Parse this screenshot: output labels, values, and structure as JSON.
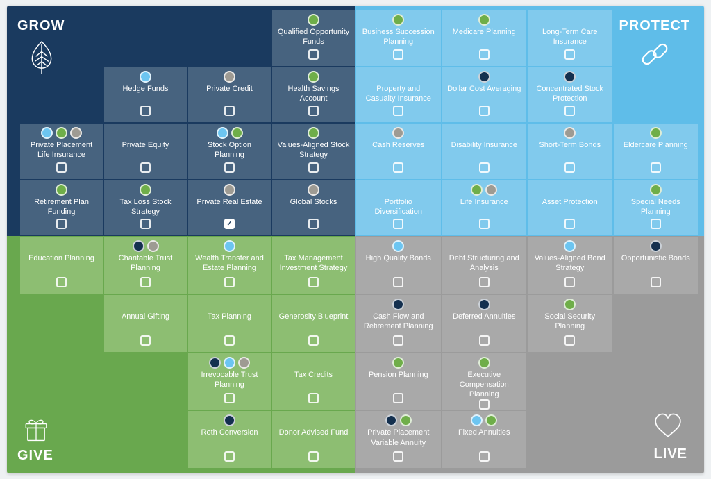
{
  "quadrants": [
    {
      "id": "grow",
      "label": "GROW",
      "icon": "leaf-icon",
      "bg": "#1a3a5f",
      "cell_bg": "#47637f",
      "position": "top-left"
    },
    {
      "id": "protect",
      "label": "PROTECT",
      "icon": "chain-link-icon",
      "bg": "#5fbde9",
      "cell_bg": "#81caed",
      "position": "top-right"
    },
    {
      "id": "give",
      "label": "GIVE",
      "icon": "gift-icon",
      "bg": "#69a84e",
      "cell_bg": "#8dbe72",
      "position": "bottom-left"
    },
    {
      "id": "live",
      "label": "LIVE",
      "icon": "heart-icon",
      "bg": "#9b9b9b",
      "cell_bg": "#a9a9a9",
      "position": "bottom-right"
    }
  ],
  "dot_colors": {
    "blue": "#6cc5f1",
    "green": "#6fae49",
    "gray": "#9e9b93",
    "navy": "#14304f"
  },
  "cells": [
    {
      "row": 1,
      "col": 4,
      "label": "Qualified Opportunity Funds",
      "dots": [
        "green"
      ],
      "checked": false
    },
    {
      "row": 1,
      "col": 5,
      "label": "Business Succession Planning",
      "dots": [
        "green"
      ],
      "checked": false
    },
    {
      "row": 1,
      "col": 6,
      "label": "Medicare Planning",
      "dots": [
        "green"
      ],
      "checked": false
    },
    {
      "row": 1,
      "col": 7,
      "label": "Long-Term Care Insurance",
      "dots": [],
      "checked": false
    },
    {
      "row": 2,
      "col": 2,
      "label": "Hedge Funds",
      "dots": [
        "blue"
      ],
      "checked": false
    },
    {
      "row": 2,
      "col": 3,
      "label": "Private Credit",
      "dots": [
        "gray"
      ],
      "checked": false
    },
    {
      "row": 2,
      "col": 4,
      "label": "Health Savings Account",
      "dots": [
        "green"
      ],
      "checked": false
    },
    {
      "row": 2,
      "col": 5,
      "label": "Property and Casualty Insurance",
      "dots": [],
      "checked": false
    },
    {
      "row": 2,
      "col": 6,
      "label": "Dollar Cost Averaging",
      "dots": [
        "navy"
      ],
      "checked": false
    },
    {
      "row": 2,
      "col": 7,
      "label": "Concentrated Stock Protection",
      "dots": [
        "navy"
      ],
      "checked": false
    },
    {
      "row": 3,
      "col": 1,
      "label": "Private Placement Life Insurance",
      "dots": [
        "blue",
        "green",
        "gray"
      ],
      "checked": false
    },
    {
      "row": 3,
      "col": 2,
      "label": "Private Equity",
      "dots": [],
      "checked": false
    },
    {
      "row": 3,
      "col": 3,
      "label": "Stock Option Planning",
      "dots": [
        "blue",
        "green"
      ],
      "checked": false
    },
    {
      "row": 3,
      "col": 4,
      "label": "Values-Aligned Stock Strategy",
      "dots": [
        "green"
      ],
      "checked": false
    },
    {
      "row": 3,
      "col": 5,
      "label": "Cash Reserves",
      "dots": [
        "gray"
      ],
      "checked": false
    },
    {
      "row": 3,
      "col": 6,
      "label": "Disability Insurance",
      "dots": [],
      "checked": false
    },
    {
      "row": 3,
      "col": 7,
      "label": "Short-Term Bonds",
      "dots": [
        "gray"
      ],
      "checked": false
    },
    {
      "row": 3,
      "col": 8,
      "label": "Eldercare Planning",
      "dots": [
        "green"
      ],
      "checked": false
    },
    {
      "row": 4,
      "col": 1,
      "label": "Retirement Plan Funding",
      "dots": [
        "green"
      ],
      "checked": false
    },
    {
      "row": 4,
      "col": 2,
      "label": "Tax Loss Stock Strategy",
      "dots": [
        "green"
      ],
      "checked": false
    },
    {
      "row": 4,
      "col": 3,
      "label": "Private Real Estate",
      "dots": [
        "gray"
      ],
      "checked": true
    },
    {
      "row": 4,
      "col": 4,
      "label": "Global Stocks",
      "dots": [
        "gray"
      ],
      "checked": false
    },
    {
      "row": 4,
      "col": 5,
      "label": "Portfolio Diversification",
      "dots": [],
      "checked": false
    },
    {
      "row": 4,
      "col": 6,
      "label": "Life Insurance",
      "dots": [
        "green",
        "gray"
      ],
      "checked": false
    },
    {
      "row": 4,
      "col": 7,
      "label": "Asset Protection",
      "dots": [],
      "checked": false
    },
    {
      "row": 4,
      "col": 8,
      "label": "Special Needs Planning",
      "dots": [
        "green"
      ],
      "checked": false
    },
    {
      "row": 5,
      "col": 1,
      "label": "Education Planning",
      "dots": [],
      "checked": false
    },
    {
      "row": 5,
      "col": 2,
      "label": "Charitable Trust Planning",
      "dots": [
        "navy",
        "gray"
      ],
      "checked": false
    },
    {
      "row": 5,
      "col": 3,
      "label": "Wealth Transfer and Estate Planning",
      "dots": [
        "blue"
      ],
      "checked": false
    },
    {
      "row": 5,
      "col": 4,
      "label": "Tax Management Investment Strategy",
      "dots": [],
      "checked": false
    },
    {
      "row": 5,
      "col": 5,
      "label": "High Quality Bonds",
      "dots": [
        "blue"
      ],
      "checked": false
    },
    {
      "row": 5,
      "col": 6,
      "label": "Debt Structuring and Analysis",
      "dots": [],
      "checked": false
    },
    {
      "row": 5,
      "col": 7,
      "label": "Values-Aligned Bond Strategy",
      "dots": [
        "blue"
      ],
      "checked": false
    },
    {
      "row": 5,
      "col": 8,
      "label": "Opportunistic Bonds",
      "dots": [
        "navy"
      ],
      "checked": false
    },
    {
      "row": 6,
      "col": 2,
      "label": "Annual Gifting",
      "dots": [],
      "checked": false
    },
    {
      "row": 6,
      "col": 3,
      "label": "Tax Planning",
      "dots": [],
      "checked": false
    },
    {
      "row": 6,
      "col": 4,
      "label": "Generosity Blueprint",
      "dots": [],
      "checked": false
    },
    {
      "row": 6,
      "col": 5,
      "label": "Cash Flow and Retirement Planning",
      "dots": [
        "navy"
      ],
      "checked": false
    },
    {
      "row": 6,
      "col": 6,
      "label": "Deferred Annuities",
      "dots": [
        "navy"
      ],
      "checked": false
    },
    {
      "row": 6,
      "col": 7,
      "label": "Social Security Planning",
      "dots": [
        "green"
      ],
      "checked": false
    },
    {
      "row": 7,
      "col": 3,
      "label": "Irrevocable Trust Planning",
      "dots": [
        "navy",
        "blue",
        "gray"
      ],
      "checked": false
    },
    {
      "row": 7,
      "col": 4,
      "label": "Tax Credits",
      "dots": [],
      "checked": false
    },
    {
      "row": 7,
      "col": 5,
      "label": "Pension Planning",
      "dots": [
        "green"
      ],
      "checked": false
    },
    {
      "row": 7,
      "col": 6,
      "label": "Executive Compensation Planning",
      "dots": [
        "green"
      ],
      "checked": false
    },
    {
      "row": 8,
      "col": 3,
      "label": "Roth Conversion",
      "dots": [
        "navy"
      ],
      "checked": false
    },
    {
      "row": 8,
      "col": 4,
      "label": "Donor Advised Fund",
      "dots": [],
      "checked": false
    },
    {
      "row": 8,
      "col": 5,
      "label": "Private Placement Variable Annuity",
      "dots": [
        "navy",
        "green"
      ],
      "checked": false
    },
    {
      "row": 8,
      "col": 6,
      "label": "Fixed Annuities",
      "dots": [
        "blue",
        "green"
      ],
      "checked": false
    }
  ]
}
